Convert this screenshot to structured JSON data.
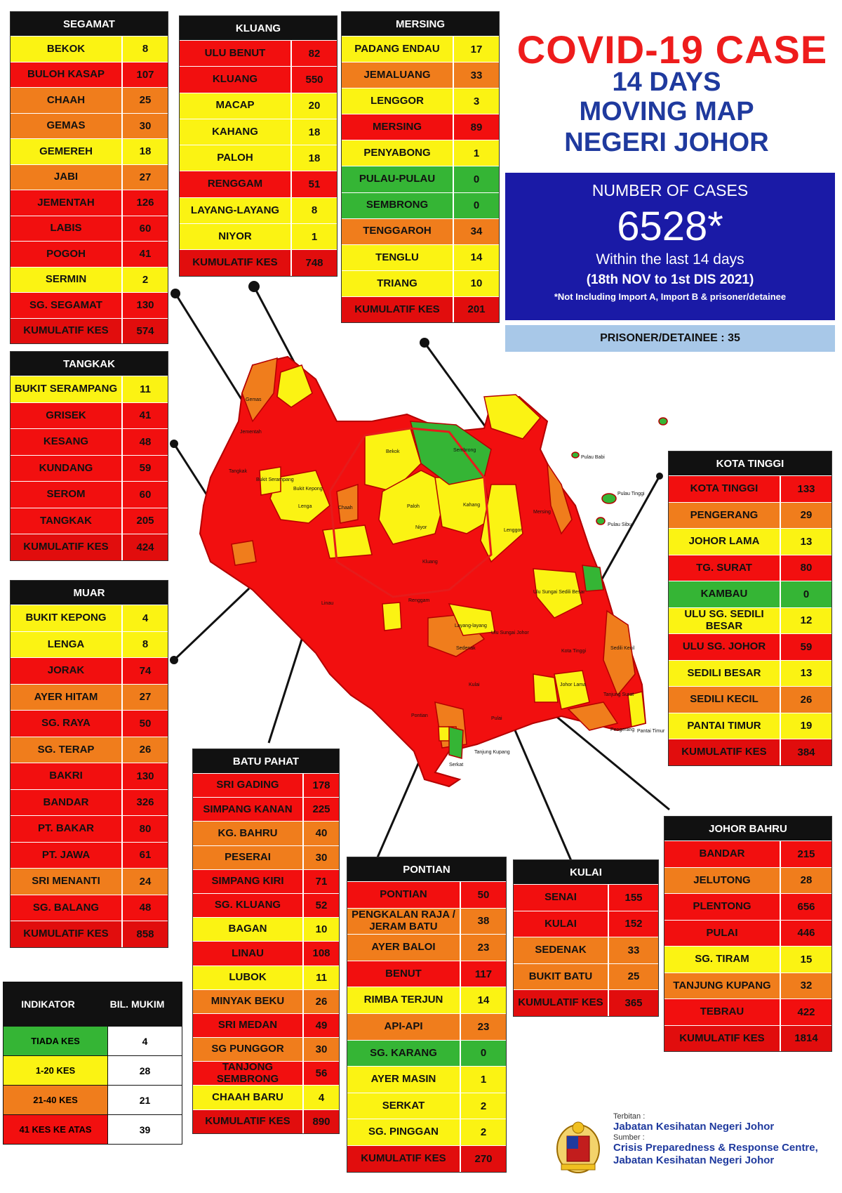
{
  "title": {
    "line1": "COVID-19 CASE",
    "line2": "14 DAYS",
    "line3": "MOVING MAP",
    "line4": "NEGERI JOHOR"
  },
  "summary": {
    "label": "NUMBER OF CASES",
    "total": "6528*",
    "within": "Within the last 14 days",
    "dates": "(18th NOV to 1st DIS 2021)",
    "note": "*Not Including Import A, Import B & prisoner/detainee",
    "prisoner": "PRISONER/DETAINEE : 35"
  },
  "colors": {
    "red": "#f20f0f",
    "orange": "#f07d1c",
    "yellow": "#fbf313",
    "green": "#35b535",
    "title_red": "#ee1c1c",
    "title_blue": "#1f3a9e",
    "case_box": "#1a1aa6",
    "prisoner_box": "#a8c8e8"
  },
  "districts": {
    "segamat": {
      "name": "SEGAMAT",
      "rows": [
        {
          "name": "BEKOK",
          "value": "8",
          "level": "yellow"
        },
        {
          "name": "BULOH KASAP",
          "value": "107",
          "level": "red"
        },
        {
          "name": "CHAAH",
          "value": "25",
          "level": "orange"
        },
        {
          "name": "GEMAS",
          "value": "30",
          "level": "orange"
        },
        {
          "name": "GEMEREH",
          "value": "18",
          "level": "yellow"
        },
        {
          "name": "JABI",
          "value": "27",
          "level": "orange"
        },
        {
          "name": "JEMENTAH",
          "value": "126",
          "level": "red"
        },
        {
          "name": "LABIS",
          "value": "60",
          "level": "red"
        },
        {
          "name": "POGOH",
          "value": "41",
          "level": "red"
        },
        {
          "name": "SERMIN",
          "value": "2",
          "level": "yellow"
        },
        {
          "name": "SG. SEGAMAT",
          "value": "130",
          "level": "red"
        },
        {
          "name": "KUMULATIF KES",
          "value": "574",
          "level": "cum"
        }
      ]
    },
    "kluang": {
      "name": "KLUANG",
      "rows": [
        {
          "name": "ULU BENUT",
          "value": "82",
          "level": "red"
        },
        {
          "name": "KLUANG",
          "value": "550",
          "level": "red"
        },
        {
          "name": "MACAP",
          "value": "20",
          "level": "yellow"
        },
        {
          "name": "KAHANG",
          "value": "18",
          "level": "yellow"
        },
        {
          "name": "PALOH",
          "value": "18",
          "level": "yellow"
        },
        {
          "name": "RENGGAM",
          "value": "51",
          "level": "red"
        },
        {
          "name": "LAYANG-LAYANG",
          "value": "8",
          "level": "yellow"
        },
        {
          "name": "NIYOR",
          "value": "1",
          "level": "yellow"
        },
        {
          "name": "KUMULATIF KES",
          "value": "748",
          "level": "cum"
        }
      ]
    },
    "mersing": {
      "name": "MERSING",
      "rows": [
        {
          "name": "PADANG ENDAU",
          "value": "17",
          "level": "yellow"
        },
        {
          "name": "JEMALUANG",
          "value": "33",
          "level": "orange"
        },
        {
          "name": "LENGGOR",
          "value": "3",
          "level": "yellow"
        },
        {
          "name": "MERSING",
          "value": "89",
          "level": "red"
        },
        {
          "name": "PENYABONG",
          "value": "1",
          "level": "yellow"
        },
        {
          "name": "PULAU-PULAU",
          "value": "0",
          "level": "green"
        },
        {
          "name": "SEMBRONG",
          "value": "0",
          "level": "green"
        },
        {
          "name": "TENGGAROH",
          "value": "34",
          "level": "orange"
        },
        {
          "name": "TENGLU",
          "value": "14",
          "level": "yellow"
        },
        {
          "name": "TRIANG",
          "value": "10",
          "level": "yellow"
        },
        {
          "name": "KUMULATIF KES",
          "value": "201",
          "level": "cum"
        }
      ]
    },
    "tangkak": {
      "name": "TANGKAK",
      "rows": [
        {
          "name": "BUKIT SERAMPANG",
          "value": "11",
          "level": "yellow"
        },
        {
          "name": "GRISEK",
          "value": "41",
          "level": "red"
        },
        {
          "name": "KESANG",
          "value": "48",
          "level": "red"
        },
        {
          "name": "KUNDANG",
          "value": "59",
          "level": "red"
        },
        {
          "name": "SEROM",
          "value": "60",
          "level": "red"
        },
        {
          "name": "TANGKAK",
          "value": "205",
          "level": "red"
        },
        {
          "name": "KUMULATIF KES",
          "value": "424",
          "level": "cum"
        }
      ]
    },
    "muar": {
      "name": "MUAR",
      "rows": [
        {
          "name": "BUKIT KEPONG",
          "value": "4",
          "level": "yellow"
        },
        {
          "name": "LENGA",
          "value": "8",
          "level": "yellow"
        },
        {
          "name": "JORAK",
          "value": "74",
          "level": "red"
        },
        {
          "name": "AYER HITAM",
          "value": "27",
          "level": "orange"
        },
        {
          "name": "SG. RAYA",
          "value": "50",
          "level": "red"
        },
        {
          "name": "SG. TERAP",
          "value": "26",
          "level": "orange"
        },
        {
          "name": "BAKRI",
          "value": "130",
          "level": "red"
        },
        {
          "name": "BANDAR",
          "value": "326",
          "level": "red"
        },
        {
          "name": "PT. BAKAR",
          "value": "80",
          "level": "red"
        },
        {
          "name": "PT. JAWA",
          "value": "61",
          "level": "red"
        },
        {
          "name": "SRI MENANTI",
          "value": "24",
          "level": "orange"
        },
        {
          "name": "SG. BALANG",
          "value": "48",
          "level": "red"
        },
        {
          "name": "KUMULATIF KES",
          "value": "858",
          "level": "cum"
        }
      ]
    },
    "batupahat": {
      "name": "BATU PAHAT",
      "rows": [
        {
          "name": "SRI GADING",
          "value": "178",
          "level": "red"
        },
        {
          "name": "SIMPANG KANAN",
          "value": "225",
          "level": "red"
        },
        {
          "name": "KG. BAHRU",
          "value": "40",
          "level": "orange"
        },
        {
          "name": "PESERAI",
          "value": "30",
          "level": "orange"
        },
        {
          "name": "SIMPANG KIRI",
          "value": "71",
          "level": "red"
        },
        {
          "name": "SG. KLUANG",
          "value": "52",
          "level": "red"
        },
        {
          "name": "BAGAN",
          "value": "10",
          "level": "yellow"
        },
        {
          "name": "LINAU",
          "value": "108",
          "level": "red"
        },
        {
          "name": "LUBOK",
          "value": "11",
          "level": "yellow"
        },
        {
          "name": "MINYAK BEKU",
          "value": "26",
          "level": "orange"
        },
        {
          "name": "SRI MEDAN",
          "value": "49",
          "level": "red"
        },
        {
          "name": "SG PUNGGOR",
          "value": "30",
          "level": "orange"
        },
        {
          "name": "TANJONG SEMBRONG",
          "value": "56",
          "level": "red"
        },
        {
          "name": "CHAAH BARU",
          "value": "4",
          "level": "yellow"
        },
        {
          "name": "KUMULATIF KES",
          "value": "890",
          "level": "cum"
        }
      ]
    },
    "pontian": {
      "name": "PONTIAN",
      "rows": [
        {
          "name": "PONTIAN",
          "value": "50",
          "level": "red"
        },
        {
          "name": "PENGKALAN RAJA / JERAM BATU",
          "value": "38",
          "level": "orange"
        },
        {
          "name": "AYER BALOI",
          "value": "23",
          "level": "orange"
        },
        {
          "name": "BENUT",
          "value": "117",
          "level": "red"
        },
        {
          "name": "RIMBA TERJUN",
          "value": "14",
          "level": "yellow"
        },
        {
          "name": "API-API",
          "value": "23",
          "level": "orange"
        },
        {
          "name": "SG. KARANG",
          "value": "0",
          "level": "green"
        },
        {
          "name": "AYER MASIN",
          "value": "1",
          "level": "yellow"
        },
        {
          "name": "SERKAT",
          "value": "2",
          "level": "yellow"
        },
        {
          "name": "SG. PINGGAN",
          "value": "2",
          "level": "yellow"
        },
        {
          "name": "KUMULATIF KES",
          "value": "270",
          "level": "cum"
        }
      ]
    },
    "kulai": {
      "name": "KULAI",
      "rows": [
        {
          "name": "SENAI",
          "value": "155",
          "level": "red"
        },
        {
          "name": "KULAI",
          "value": "152",
          "level": "red"
        },
        {
          "name": "SEDENAK",
          "value": "33",
          "level": "orange"
        },
        {
          "name": "BUKIT BATU",
          "value": "25",
          "level": "orange"
        },
        {
          "name": "KUMULATIF KES",
          "value": "365",
          "level": "cum"
        }
      ]
    },
    "kotatinggi": {
      "name": "KOTA TINGGI",
      "rows": [
        {
          "name": "KOTA TINGGI",
          "value": "133",
          "level": "red"
        },
        {
          "name": "PENGERANG",
          "value": "29",
          "level": "orange"
        },
        {
          "name": "JOHOR LAMA",
          "value": "13",
          "level": "yellow"
        },
        {
          "name": "TG. SURAT",
          "value": "80",
          "level": "red"
        },
        {
          "name": "KAMBAU",
          "value": "0",
          "level": "green"
        },
        {
          "name": "ULU SG. SEDILI BESAR",
          "value": "12",
          "level": "yellow"
        },
        {
          "name": "ULU  SG. JOHOR",
          "value": "59",
          "level": "red"
        },
        {
          "name": "SEDILI BESAR",
          "value": "13",
          "level": "yellow"
        },
        {
          "name": "SEDILI KECIL",
          "value": "26",
          "level": "orange"
        },
        {
          "name": "PANTAI TIMUR",
          "value": "19",
          "level": "yellow"
        },
        {
          "name": "KUMULATIF KES",
          "value": "384",
          "level": "cum"
        }
      ]
    },
    "johorbahru": {
      "name": "JOHOR BAHRU",
      "rows": [
        {
          "name": "BANDAR",
          "value": "215",
          "level": "red"
        },
        {
          "name": "JELUTONG",
          "value": "28",
          "level": "orange"
        },
        {
          "name": "PLENTONG",
          "value": "656",
          "level": "red"
        },
        {
          "name": "PULAI",
          "value": "446",
          "level": "red"
        },
        {
          "name": "SG. TIRAM",
          "value": "15",
          "level": "yellow"
        },
        {
          "name": "TANJUNG KUPANG",
          "value": "32",
          "level": "orange"
        },
        {
          "name": "TEBRAU",
          "value": "422",
          "level": "red"
        },
        {
          "name": "KUMULATIF KES",
          "value": "1814",
          "level": "cum"
        }
      ]
    }
  },
  "legend": {
    "head_indicator": "INDIKATOR",
    "head_count": "BIL. MUKIM",
    "rows": [
      {
        "label": "TIADA KES",
        "count": "4",
        "level": "green"
      },
      {
        "label": "1-20 KES",
        "count": "28",
        "level": "yellow"
      },
      {
        "label": "21-40 KES",
        "count": "21",
        "level": "orange"
      },
      {
        "label": "41 KES KE ATAS",
        "count": "39",
        "level": "red"
      }
    ]
  },
  "footer": {
    "publisher_label": "Terbitan :",
    "publisher": "Jabatan Kesihatan Negeri Johor",
    "source_label": "Sumber :",
    "source_line1": "Crisis Preparedness & Response Centre,",
    "source_line2": "Jabatan Kesihatan Negeri Johor"
  },
  "map_labels": {
    "gemas": "Gemas",
    "bukit_serampang": "Bukit Serampang",
    "bukit_kepong": "Bukit Kepong",
    "lenga": "Lenga",
    "bekok": "Bekok",
    "paloh": "Paloh",
    "niyor": "Niyor",
    "kahang": "Kahang",
    "lenggor": "Lenggor",
    "sembrong": "Sembrong",
    "mersing": "Mersing",
    "kluang": "Kluang",
    "renggam": "Renggam",
    "layang_layang": "Layang-layang",
    "sedenak": "Sedenak",
    "kota_tinggi": "Kota Tinggi",
    "pulau_tinggi": "Pulau Tinggi",
    "pulau_sibu": "Pulau Sibu",
    "pulau_babi": "Pulau Babi",
    "ulu_sungai_johor": "Ulu Sungai Johor",
    "ulu_sedili": "Ulu Sungai Sedili Besar",
    "sedili_kecil": "Sedili Kecil",
    "johor_lama": "Johor Lama",
    "tanjung_surat": "Tanjung Surat",
    "pengerang": "Pengerang",
    "pantai_timur": "Pantai Timur",
    "pulai": "Pulai",
    "kulai": "Kulai",
    "pontian": "Pontian",
    "serkat": "Serkat",
    "tanjung_kupang": "Tanjung Kupang",
    "linau": "Linau",
    "chaah": "Chaah",
    "jementah": "Jementah",
    "tangkak": "Tangkak"
  }
}
